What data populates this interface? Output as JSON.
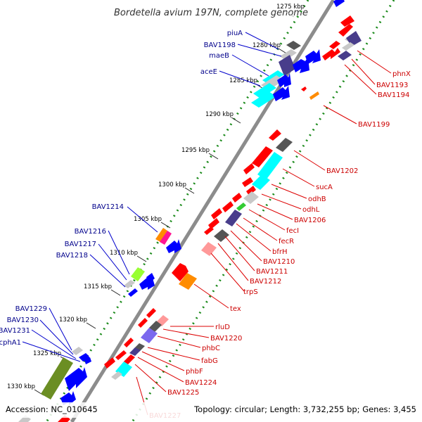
{
  "title": "Bordetella avium 197N, complete genome",
  "footer": {
    "accession": "Accession: NC_010645",
    "summary": "Topology: circular; Length: 3,732,255 bp; Genes: 3,455"
  },
  "ticks": [
    "1275 kbp",
    "1280 kbp",
    "1285 kbp",
    "1290 kbp",
    "1295 kbp",
    "1300 kbp",
    "1305 kbp",
    "1310 kbp",
    "1315 kbp",
    "1320 kbp",
    "1325 kbp",
    "1330 kbp"
  ],
  "left_genes": [
    "piuA",
    "BAV1198",
    "maeB",
    "aceE",
    "BAV1214",
    "BAV1216",
    "BAV1217",
    "BAV1218",
    "BAV1229",
    "BAV1230",
    "BAV1231",
    "cphA1"
  ],
  "right_genes": [
    "phnX",
    "BAV1193",
    "BAV1194",
    "BAV1199",
    "BAV1202",
    "sucA",
    "odhB",
    "odhL",
    "BAV1206",
    "fecI",
    "fecR",
    "bfrH",
    "BAV1210",
    "BAV1211",
    "BAV1212",
    "trpS",
    "tex",
    "rluD",
    "BAV1220",
    "phbC",
    "fabG",
    "phbF",
    "BAV1224",
    "BAV1225",
    "BAV1227"
  ],
  "colors": {
    "backbone": "#8c8c8c",
    "dots": "#1a8a1a",
    "forward_gene": "#0000ff",
    "reverse_gene": "#ff0000",
    "left_label": "#00008b",
    "right_label": "#cc0000",
    "cyan_gene": "#00ffff",
    "purple_gene": "#5a4fc8",
    "orange_gene": "#ff8c00",
    "olive_gene": "#6b8e23",
    "lime_gene": "#99ff33"
  }
}
